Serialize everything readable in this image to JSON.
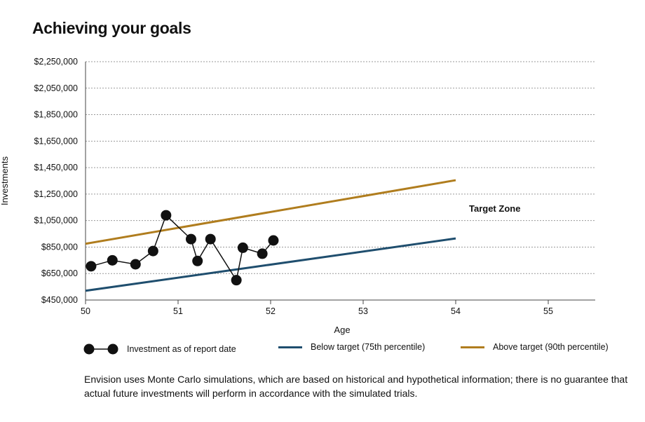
{
  "title": "Achieving your goals",
  "note": "Envision uses Monte Carlo simulations, which are based on historical and hypothetical information; there is no guarantee that actual future investments will perform in accordance with the simulated trials.",
  "chart_data": {
    "type": "line",
    "xlabel": "Age",
    "ylabel": "Investments",
    "xlim": [
      50,
      55.75
    ],
    "ylim": [
      450000,
      2250000
    ],
    "x_ticks": [
      50,
      51,
      52,
      53,
      54,
      55
    ],
    "y_ticks": [
      450000,
      650000,
      850000,
      1050000,
      1250000,
      1450000,
      1650000,
      1850000,
      2050000,
      2250000
    ],
    "y_tick_labels": [
      "$450,000",
      "$650,000",
      "$850,000",
      "$1,050,000",
      "$1,250,000",
      "$1,450,000",
      "$1,650,000",
      "$1,850,000",
      "$2,050,000",
      "$2,250,000"
    ],
    "grid": "horizontal dotted",
    "annotation": "Target Zone",
    "legend_position": "bottom",
    "series": [
      {
        "name": "Investment as of report date",
        "color": "#111111",
        "style": "line-with-markers",
        "x": [
          50.06,
          50.29,
          50.54,
          50.73,
          50.87,
          51.14,
          51.21,
          51.35,
          51.63,
          51.7,
          51.91,
          52.03
        ],
        "y": [
          705000,
          750000,
          720000,
          820000,
          1090000,
          910000,
          745000,
          910000,
          600000,
          845000,
          800000,
          900000
        ]
      },
      {
        "name": "Below target (75th percentile)",
        "color": "#1f4e6e",
        "style": "line",
        "x": [
          50,
          54
        ],
        "y": [
          520000,
          915000
        ]
      },
      {
        "name": "Above target (90th percentile)",
        "color": "#b07d1e",
        "style": "line",
        "x": [
          50,
          54
        ],
        "y": [
          875000,
          1355000
        ]
      }
    ]
  }
}
